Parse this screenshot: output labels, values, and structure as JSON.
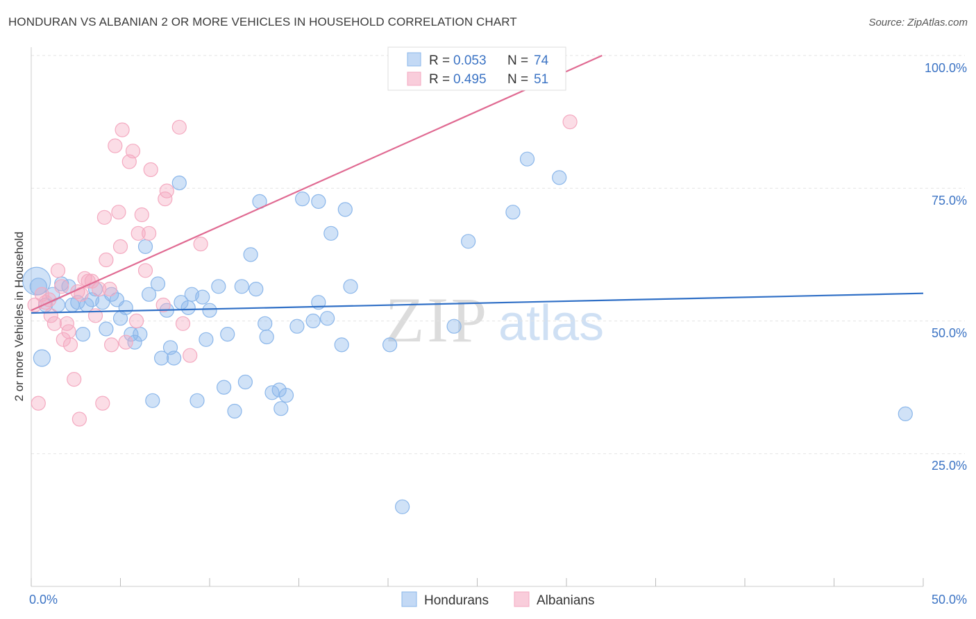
{
  "chart_data": {
    "type": "scatter",
    "title": "HONDURAN VS ALBANIAN 2 OR MORE VEHICLES IN HOUSEHOLD CORRELATION CHART",
    "source": "Source: ZipAtlas.com",
    "ylabel": "2 or more Vehicles in Household",
    "xlabel": "",
    "xlim": [
      0,
      50
    ],
    "ylim": [
      0,
      105
    ],
    "x_tick_labels": [
      "0.0%",
      "50.0%"
    ],
    "y_tick_labels": [
      "100.0%",
      "75.0%",
      "50.0%",
      "25.0%"
    ],
    "y_ticks": [
      100,
      75,
      50,
      25
    ],
    "watermark": {
      "zip": "ZIP",
      "atlas": "atlas"
    },
    "legend": [
      {
        "r_label": "R = ",
        "r": "0.053",
        "n_label": "N = ",
        "n": "74"
      },
      {
        "r_label": "R = ",
        "r": "0.495",
        "n_label": "N = ",
        "n": "51"
      }
    ],
    "series": [
      {
        "name": "Hondurans",
        "color": "#8ab6ea",
        "line_color": "#2f6fc6",
        "trend": {
          "x": [
            0,
            50
          ],
          "y": [
            51.5,
            55.2
          ]
        },
        "points": [
          [
            0.3,
            57.5,
            20
          ],
          [
            0.4,
            56.5,
            12
          ],
          [
            0.6,
            43,
            12
          ],
          [
            0.8,
            53,
            10
          ],
          [
            1.2,
            55,
            10
          ],
          [
            1.5,
            53,
            10
          ],
          [
            1.7,
            57,
            10
          ],
          [
            2.1,
            56.5,
            10
          ],
          [
            2.3,
            53,
            10
          ],
          [
            2.6,
            53.5,
            10
          ],
          [
            2.9,
            47.5,
            10
          ],
          [
            3.1,
            53,
            10
          ],
          [
            3.4,
            54,
            10
          ],
          [
            3.6,
            56,
            10
          ],
          [
            4.0,
            53.5,
            10
          ],
          [
            4.2,
            48.5,
            10
          ],
          [
            4.5,
            55,
            10
          ],
          [
            4.8,
            54,
            10
          ],
          [
            5.0,
            50.5,
            10
          ],
          [
            5.3,
            52.5,
            10
          ],
          [
            5.6,
            47.5,
            10
          ],
          [
            5.8,
            46,
            10
          ],
          [
            6.1,
            47.5,
            10
          ],
          [
            6.4,
            64,
            10
          ],
          [
            6.6,
            55,
            10
          ],
          [
            6.8,
            35,
            10
          ],
          [
            7.1,
            57,
            10
          ],
          [
            7.3,
            43,
            10
          ],
          [
            7.6,
            52,
            10
          ],
          [
            7.8,
            45,
            10
          ],
          [
            8.0,
            43,
            10
          ],
          [
            8.3,
            76,
            10
          ],
          [
            8.4,
            53.5,
            10
          ],
          [
            8.8,
            52.5,
            10
          ],
          [
            9.0,
            55,
            10
          ],
          [
            9.3,
            35,
            10
          ],
          [
            9.6,
            54.5,
            10
          ],
          [
            9.8,
            46.5,
            10
          ],
          [
            10.0,
            52,
            10
          ],
          [
            10.5,
            56.5,
            10
          ],
          [
            10.8,
            37.5,
            10
          ],
          [
            11.0,
            47.5,
            10
          ],
          [
            11.4,
            33,
            10
          ],
          [
            11.8,
            56.5,
            10
          ],
          [
            12.0,
            38.5,
            10
          ],
          [
            12.3,
            62.5,
            10
          ],
          [
            12.6,
            56,
            10
          ],
          [
            12.8,
            72.5,
            10
          ],
          [
            13.1,
            49.5,
            10
          ],
          [
            13.2,
            47,
            10
          ],
          [
            13.5,
            36.5,
            10
          ],
          [
            13.9,
            37,
            10
          ],
          [
            14.0,
            33.5,
            10
          ],
          [
            14.3,
            36,
            10
          ],
          [
            14.9,
            49,
            10
          ],
          [
            15.2,
            73,
            10
          ],
          [
            15.8,
            50,
            10
          ],
          [
            16.1,
            72.5,
            10
          ],
          [
            16.1,
            53.5,
            10
          ],
          [
            16.6,
            50.5,
            10
          ],
          [
            16.8,
            66.5,
            10
          ],
          [
            17.4,
            45.5,
            10
          ],
          [
            17.6,
            71,
            10
          ],
          [
            17.9,
            56.5,
            10
          ],
          [
            20.1,
            45.5,
            10
          ],
          [
            20.8,
            15,
            10
          ],
          [
            23.7,
            49,
            10
          ],
          [
            24.5,
            65,
            10
          ],
          [
            27.0,
            70.5,
            10
          ],
          [
            27.8,
            80.5,
            10
          ],
          [
            29.6,
            77,
            10
          ],
          [
            49.0,
            32.5,
            10
          ]
        ]
      },
      {
        "name": "Albanians",
        "color": "#f4a9c0",
        "line_color": "#e06a92",
        "trend": {
          "x": [
            0,
            32
          ],
          "y": [
            52,
            100
          ]
        },
        "points": [
          [
            0.2,
            53,
            10
          ],
          [
            0.4,
            34.5,
            10
          ],
          [
            0.6,
            55,
            10
          ],
          [
            0.8,
            53.5,
            10
          ],
          [
            1.0,
            54,
            10
          ],
          [
            1.1,
            51,
            10
          ],
          [
            1.3,
            49.5,
            10
          ],
          [
            1.5,
            59.5,
            10
          ],
          [
            1.7,
            56.5,
            10
          ],
          [
            1.8,
            46.5,
            10
          ],
          [
            2.0,
            49.5,
            10
          ],
          [
            2.1,
            48,
            10
          ],
          [
            2.2,
            45.5,
            10
          ],
          [
            2.4,
            39,
            10
          ],
          [
            2.6,
            55.5,
            10
          ],
          [
            2.7,
            31.5,
            10
          ],
          [
            2.8,
            55,
            10
          ],
          [
            3.0,
            58,
            10
          ],
          [
            3.2,
            57.5,
            10
          ],
          [
            3.4,
            57.5,
            10
          ],
          [
            3.6,
            51,
            10
          ],
          [
            3.8,
            56,
            10
          ],
          [
            4.0,
            34.5,
            10
          ],
          [
            4.1,
            69.5,
            10
          ],
          [
            4.2,
            61.5,
            10
          ],
          [
            4.4,
            56,
            10
          ],
          [
            4.5,
            45.5,
            10
          ],
          [
            4.7,
            83,
            10
          ],
          [
            4.9,
            70.5,
            10
          ],
          [
            5.0,
            64,
            10
          ],
          [
            5.1,
            86,
            10
          ],
          [
            5.3,
            46,
            10
          ],
          [
            5.5,
            80,
            10
          ],
          [
            5.7,
            82,
            10
          ],
          [
            5.9,
            50,
            10
          ],
          [
            6.0,
            66.5,
            10
          ],
          [
            6.2,
            70,
            10
          ],
          [
            6.4,
            59.5,
            10
          ],
          [
            6.6,
            66.5,
            10
          ],
          [
            6.7,
            78.5,
            10
          ],
          [
            7.4,
            53,
            10
          ],
          [
            7.5,
            73,
            10
          ],
          [
            7.6,
            74.5,
            10
          ],
          [
            8.3,
            86.5,
            10
          ],
          [
            8.5,
            49.5,
            10
          ],
          [
            8.9,
            43.5,
            10
          ],
          [
            9.5,
            64.5,
            10
          ],
          [
            30.2,
            87.5,
            10
          ]
        ]
      }
    ]
  }
}
